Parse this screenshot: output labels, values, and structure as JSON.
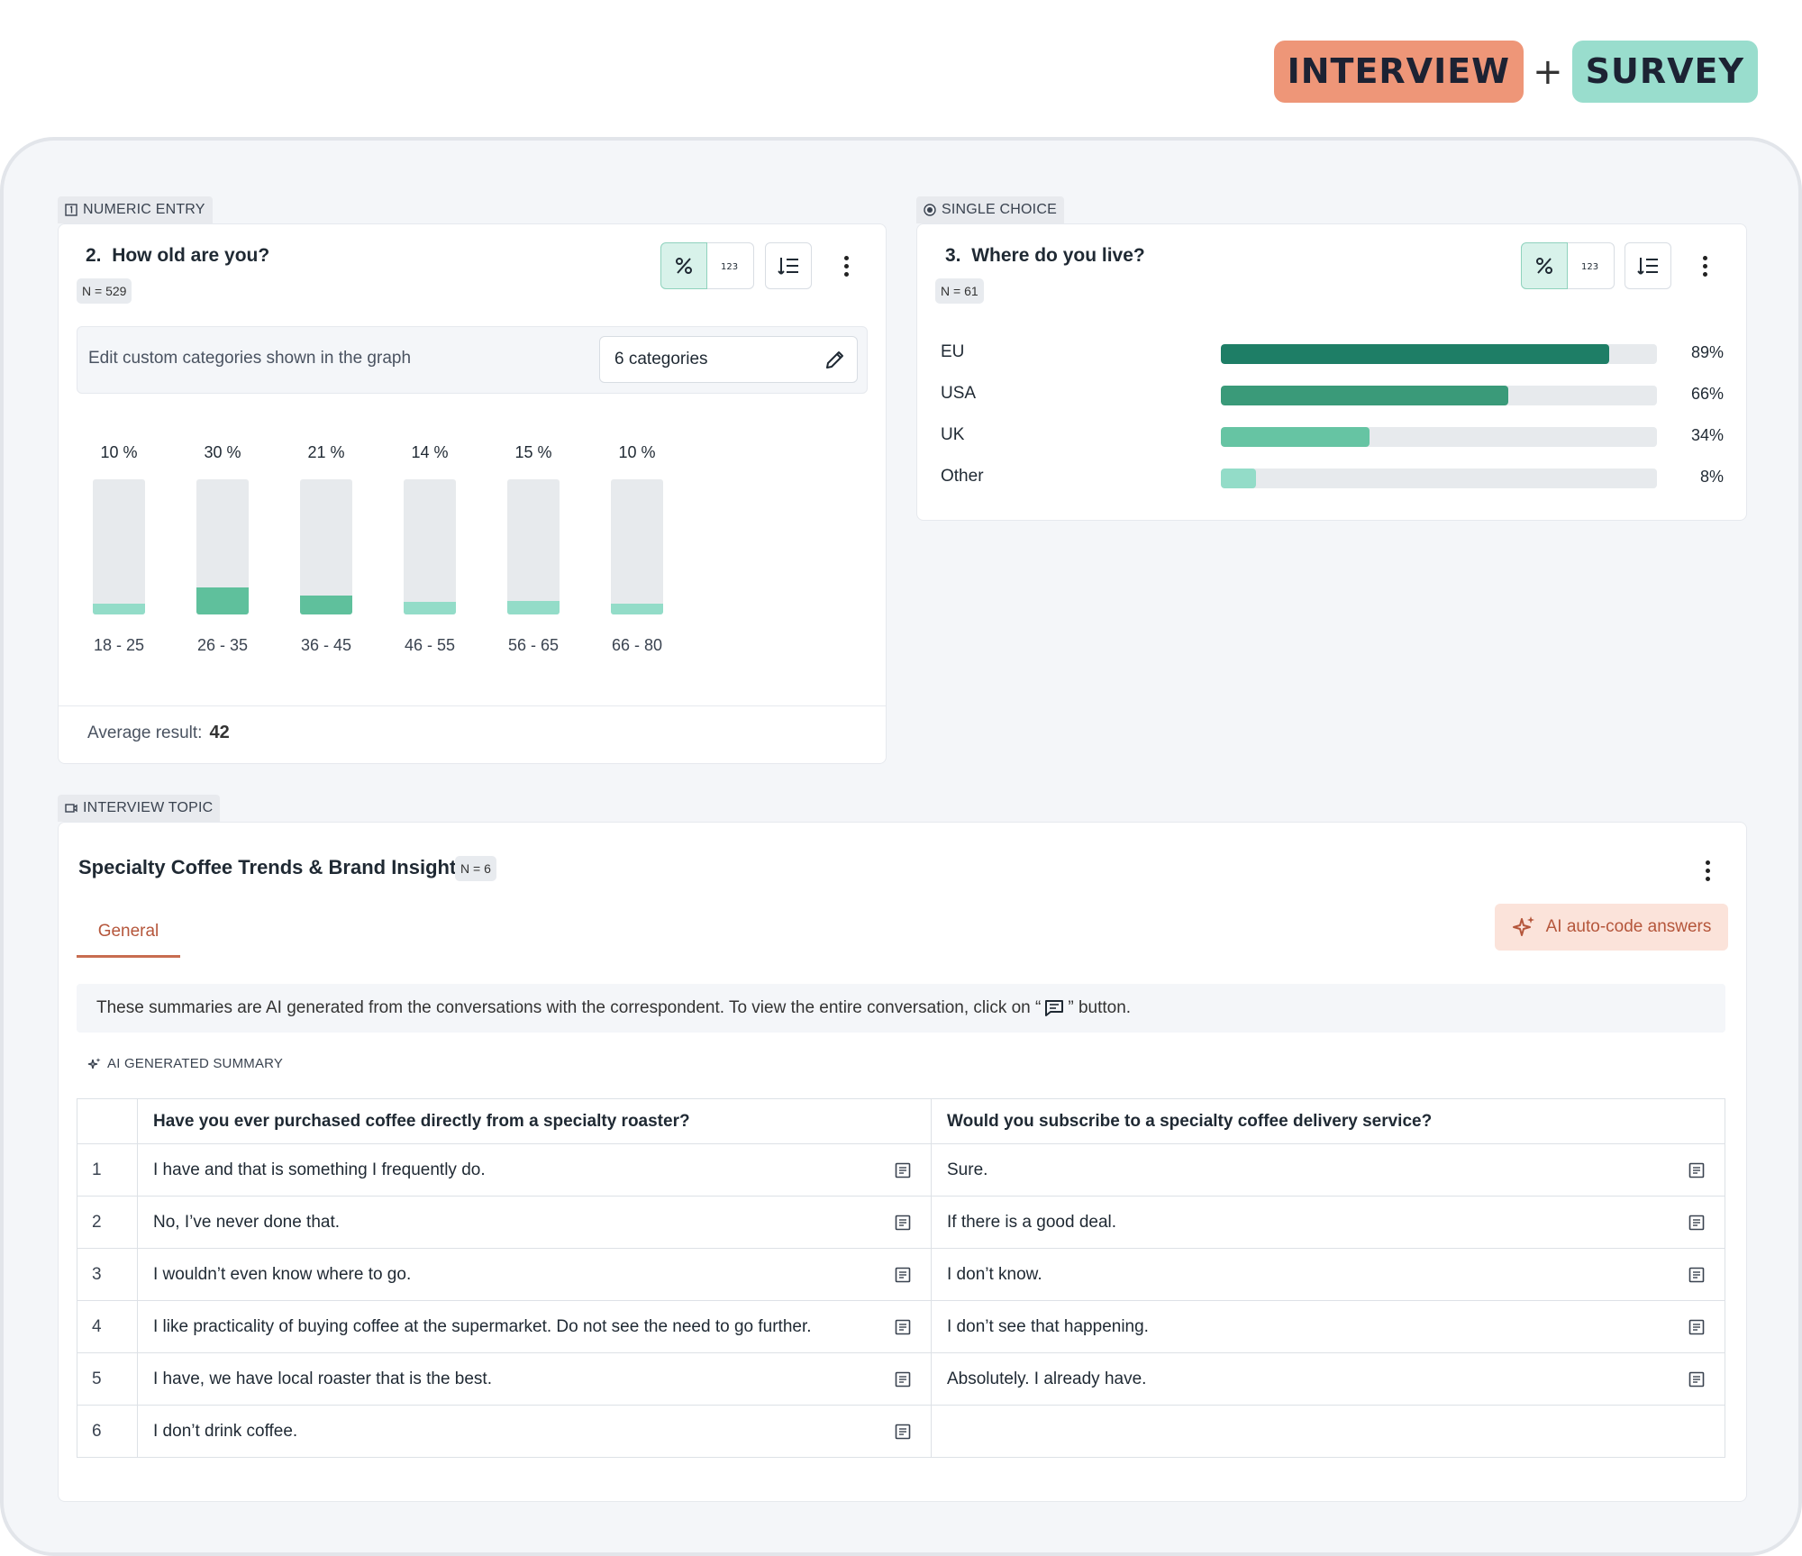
{
  "header": {
    "badge_interview": "INTERVIEW",
    "plus": "+",
    "badge_survey": "SURVEY"
  },
  "q2": {
    "tag": "NUMERIC ENTRY",
    "number": "2.",
    "title": "How old are you?",
    "n": "N = 529",
    "edit_label": "Edit custom categories shown in the graph",
    "categories_value": "6 categories",
    "avg_label": "Average result:",
    "avg_value": "42",
    "colors": {
      "track": "#e7eaed",
      "high": "#5fc09c",
      "low": "#93dcc8"
    }
  },
  "q3": {
    "tag": "SINGLE CHOICE",
    "number": "3.",
    "title": "Where do you live?",
    "n": "N = 61"
  },
  "chart_data": [
    {
      "type": "bar",
      "categories": [
        "18 - 25",
        "26 - 35",
        "36 - 45",
        "46 - 55",
        "56 - 65",
        "66 - 80"
      ],
      "values": [
        10,
        30,
        21,
        14,
        15,
        10
      ],
      "labels": [
        "10 %",
        "30 %",
        "21 %",
        "14 %",
        "15 %",
        "10 %"
      ]
    },
    {
      "type": "bar",
      "orientation": "horizontal",
      "categories": [
        "EU",
        "USA",
        "UK",
        "Other"
      ],
      "values": [
        89,
        66,
        34,
        8
      ],
      "labels": [
        "89%",
        "66%",
        "34%",
        "8%"
      ],
      "colors": [
        "#1e7e66",
        "#3a9a79",
        "#66c4a3",
        "#93dcc8"
      ]
    }
  ],
  "interview": {
    "tag": "INTERVIEW TOPIC",
    "title": "Specialty Coffee Trends & Brand Insights",
    "n": "N = 6",
    "tab_general": "General",
    "ai_button": "AI auto-code answers",
    "note_before": "These summaries are AI generated from the conversations with the correspondent. To view the entire conversation, click on “",
    "note_after": "” button.",
    "ai_summary_label": "AI GENERATED SUMMARY",
    "columns": [
      "Have you ever purchased coffee directly from a specialty roaster?",
      "Would you subscribe to a specialty coffee delivery service?"
    ],
    "rows": [
      {
        "n": "1",
        "a": "I have and that is something I frequently do.",
        "b": "Sure."
      },
      {
        "n": "2",
        "a": "No, I’ve never done that.",
        "b": "If there is a good deal."
      },
      {
        "n": "3",
        "a": "I wouldn’t even know where to go.",
        "b": "I don’t know."
      },
      {
        "n": "4",
        "a": "I like practicality of buying coffee at the supermarket. Do not see the need to go further.",
        "b": "I don’t see that happening."
      },
      {
        "n": "5",
        "a": "I have, we have local roaster that is the best.",
        "b": "Absolutely. I already have."
      },
      {
        "n": "6",
        "a": "I don’t drink coffee.",
        "b": ""
      }
    ]
  }
}
